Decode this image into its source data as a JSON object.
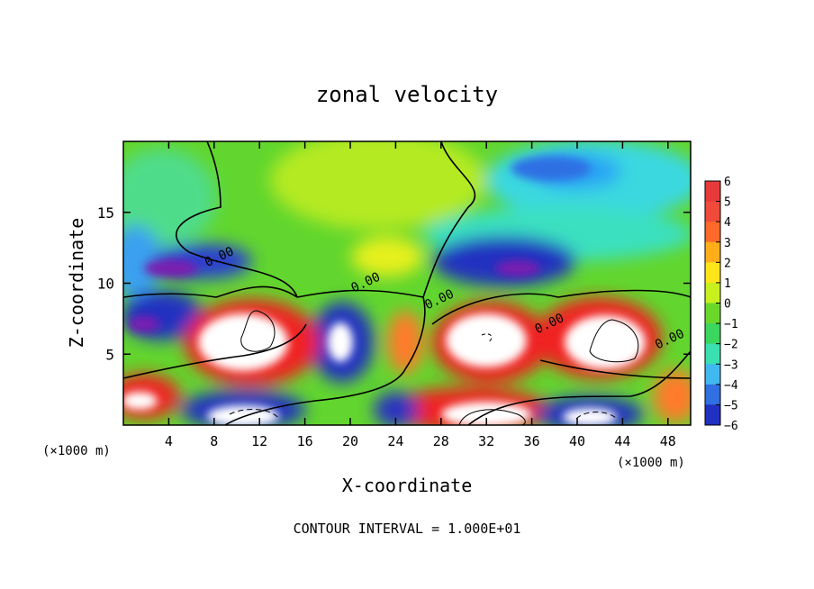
{
  "chart_data": {
    "type": "heatmap",
    "title": "zonal velocity",
    "xlabel": "X-coordinate",
    "ylabel": "Z-coordinate",
    "x_unit_left": "(×1000 m)",
    "x_unit_right": "(×1000 m)",
    "footer": "CONTOUR INTERVAL = 1.000E+01",
    "xlim": [
      0,
      50
    ],
    "ylim": [
      0,
      20
    ],
    "x_ticks": [
      4,
      8,
      12,
      16,
      20,
      24,
      28,
      32,
      36,
      40,
      44,
      48
    ],
    "y_ticks": [
      5,
      10,
      15
    ],
    "colorbar": {
      "ticks": [
        6,
        5,
        4,
        3,
        2,
        1,
        0,
        -1,
        -2,
        -3,
        -4,
        -5,
        -6
      ],
      "colors": [
        "#e83a3a",
        "#f04a3a",
        "#ff6a2a",
        "#ffae1a",
        "#ffe41a",
        "#c8f01e",
        "#6ad82a",
        "#3ad65e",
        "#3ae0b0",
        "#40b8f0",
        "#3070e0",
        "#2030c0",
        "#7a1ab0"
      ],
      "top_color": "#f4a0a0"
    },
    "contour_labels": [
      {
        "text": "0.00",
        "x": 8.6,
        "y": 11.6
      },
      {
        "text": "0.00",
        "x": 21.5,
        "y": 9.8
      },
      {
        "text": "0.00",
        "x": 28.0,
        "y": 8.6
      },
      {
        "text": "0.00",
        "x": 37.7,
        "y": 6.9
      },
      {
        "text": "0.00",
        "x": 48.3,
        "y": 5.8
      }
    ],
    "grid": false,
    "legend": "colorbar right"
  }
}
